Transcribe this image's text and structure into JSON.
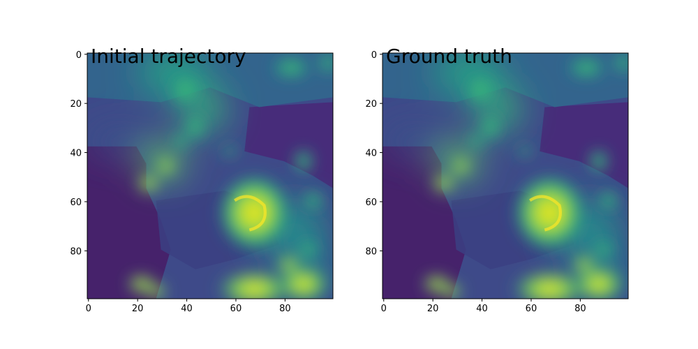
{
  "chart_data": [
    {
      "type": "heatmap",
      "title": "Initial trajectory",
      "xlabel": "",
      "ylabel": "",
      "xlim": [
        0,
        100
      ],
      "ylim": [
        100,
        0
      ],
      "xticks": [
        0,
        20,
        40,
        60,
        80
      ],
      "yticks": [
        0,
        20,
        40,
        60,
        80
      ],
      "colormap": "viridis",
      "grid": false,
      "image_size": [
        100,
        100
      ]
    },
    {
      "type": "heatmap",
      "title": "Ground truth",
      "xlabel": "",
      "ylabel": "",
      "xlim": [
        0,
        100
      ],
      "ylim": [
        100,
        0
      ],
      "xticks": [
        0,
        20,
        40,
        60,
        80
      ],
      "yticks": [
        0,
        20,
        40,
        60,
        80
      ],
      "colormap": "viridis",
      "grid": false,
      "image_size": [
        100,
        100
      ]
    }
  ],
  "colors": {
    "viridis_low": "#440154",
    "viridis_dark_blue": "#3b528b",
    "viridis_teal": "#21918c",
    "viridis_green": "#5ec962",
    "viridis_high": "#fde725"
  }
}
